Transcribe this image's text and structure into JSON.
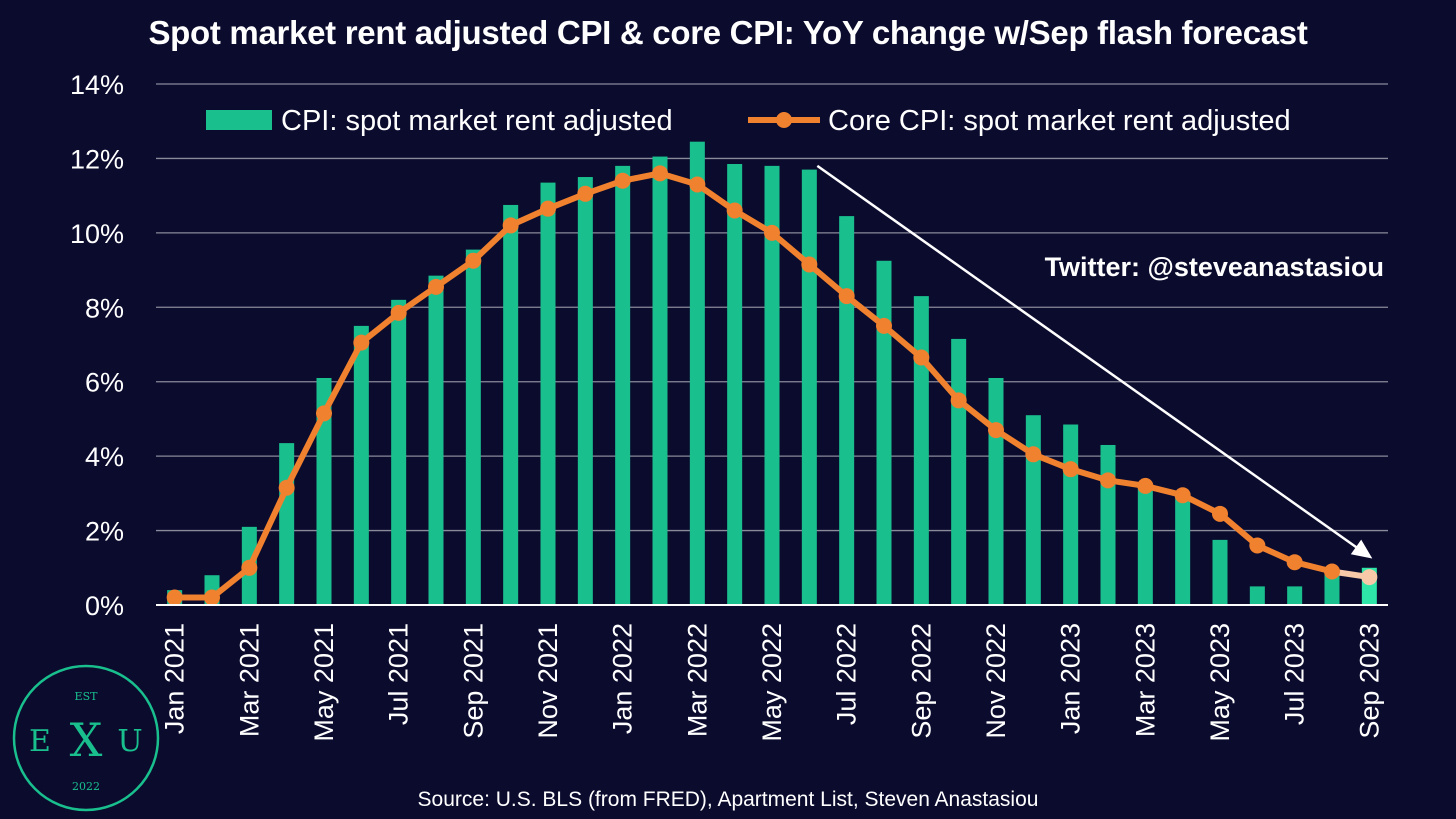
{
  "title": "Spot market rent adjusted CPI & core CPI: YoY change w/Sep flash forecast",
  "source": "Source: U.S. BLS (from FRED), Apartment List, Steven Anastasiou",
  "watermark": "Twitter: @steveanastasiou",
  "logo": {
    "top_text": "EST",
    "left_letter": "E",
    "mid_letter": "X",
    "right_letter": "U",
    "year": "2022"
  },
  "colors": {
    "background": "#0b0b2e",
    "bars": "#19c08e",
    "bars_forecast": "#2ee6a8",
    "line": "#f0812e",
    "line_forecast": "#f7c9a8",
    "grid": "#8a8a9a",
    "logo": "#19c08e"
  },
  "chart_data": {
    "type": "bar",
    "ylim": [
      0,
      14
    ],
    "yticks": [
      "0%",
      "2%",
      "4%",
      "6%",
      "8%",
      "10%",
      "12%",
      "14%"
    ],
    "xtick_labels": [
      "Jan 2021",
      "Mar 2021",
      "May 2021",
      "Jul 2021",
      "Sep 2021",
      "Nov 2021",
      "Jan 2022",
      "Mar 2022",
      "May 2022",
      "Jul 2022",
      "Sep 2022",
      "Nov 2022",
      "Jan 2023",
      "Mar 2023",
      "May 2023",
      "Jul 2023",
      "Sep 2023"
    ],
    "categories": [
      "Jan 2021",
      "Feb 2021",
      "Mar 2021",
      "Apr 2021",
      "May 2021",
      "Jun 2021",
      "Jul 2021",
      "Aug 2021",
      "Sep 2021",
      "Oct 2021",
      "Nov 2021",
      "Dec 2021",
      "Jan 2022",
      "Feb 2022",
      "Mar 2022",
      "Apr 2022",
      "May 2022",
      "Jun 2022",
      "Jul 2022",
      "Aug 2022",
      "Sep 2022",
      "Oct 2022",
      "Nov 2022",
      "Dec 2022",
      "Jan 2023",
      "Feb 2023",
      "Mar 2023",
      "Apr 2023",
      "May 2023",
      "Jun 2023",
      "Jul 2023",
      "Aug 2023",
      "Sep 2023"
    ],
    "series": [
      {
        "name": "CPI: spot market rent adjusted",
        "kind": "bar",
        "values": [
          0.4,
          0.8,
          2.1,
          4.35,
          6.1,
          7.5,
          8.2,
          8.85,
          9.55,
          10.75,
          11.35,
          11.5,
          11.8,
          12.05,
          12.45,
          11.85,
          11.8,
          11.7,
          10.45,
          9.25,
          8.3,
          7.15,
          6.1,
          5.1,
          4.85,
          4.3,
          3.25,
          3.0,
          1.75,
          0.5,
          0.5,
          0.95,
          1.0
        ]
      },
      {
        "name": "Core CPI: spot market rent adjusted",
        "kind": "line",
        "values": [
          0.2,
          0.2,
          1.0,
          3.15,
          5.15,
          7.05,
          7.85,
          8.55,
          9.25,
          10.2,
          10.65,
          11.05,
          11.4,
          11.6,
          11.3,
          10.6,
          10.0,
          9.15,
          8.3,
          7.5,
          6.65,
          5.5,
          4.7,
          4.05,
          3.65,
          3.35,
          3.2,
          2.95,
          2.45,
          1.6,
          1.15,
          0.9,
          0.75
        ]
      }
    ],
    "forecast_index": 32,
    "legend_position": "top",
    "grid": "horizontal",
    "trend_arrow": {
      "from": [
        "Jun 2022",
        11.8
      ],
      "to": [
        "Sep 2023",
        1.25
      ]
    }
  }
}
